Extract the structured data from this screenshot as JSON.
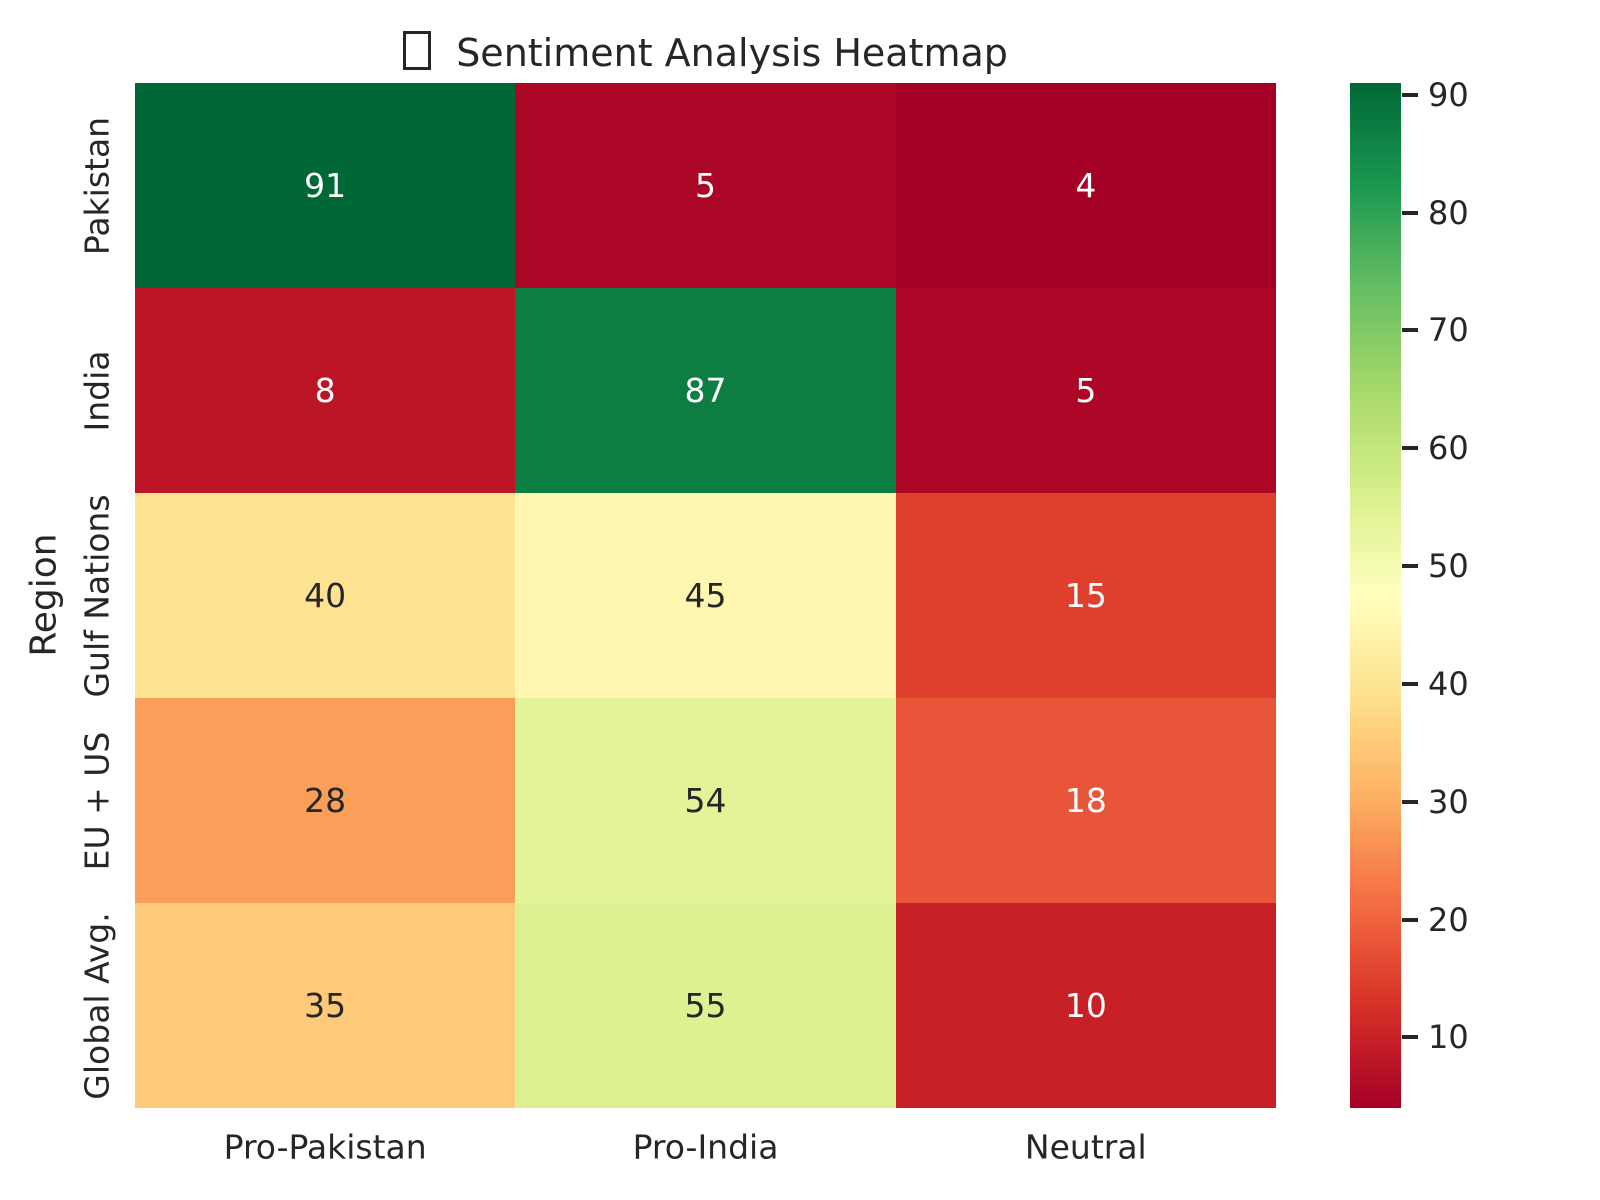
{
  "title": {
    "emoji_placeholder": "□",
    "text": "Sentiment Analysis Heatmap"
  },
  "chart_data": {
    "type": "heatmap",
    "title": "Sentiment Analysis Heatmap",
    "x_categories": [
      "Pro-Pakistan",
      "Pro-India",
      "Neutral"
    ],
    "y_categories": [
      "Pakistan",
      "India",
      "Gulf Nations",
      "EU + US",
      "Global Avg."
    ],
    "ylabel": "Region",
    "xlabel": "",
    "values": [
      [
        91,
        5,
        4
      ],
      [
        8,
        87,
        5
      ],
      [
        40,
        45,
        15
      ],
      [
        28,
        54,
        18
      ],
      [
        35,
        55,
        10
      ]
    ],
    "vmin": 4,
    "vmax": 91,
    "colormap": {
      "name": "RdYlGn",
      "stops": [
        "#a50026",
        "#d73027",
        "#f46d43",
        "#fdae61",
        "#fee08b",
        "#ffffbf",
        "#d9ef8b",
        "#a6d96a",
        "#66bd63",
        "#1a9850",
        "#006837"
      ]
    },
    "colorbar": {
      "position": "right",
      "ticks": [
        10,
        20,
        30,
        40,
        50,
        60,
        70,
        80,
        90
      ]
    },
    "annotations": true,
    "grid": false,
    "colors": {
      "background": "#ffffff",
      "text_dark": "#262626",
      "text_light": "#ffffff"
    }
  }
}
